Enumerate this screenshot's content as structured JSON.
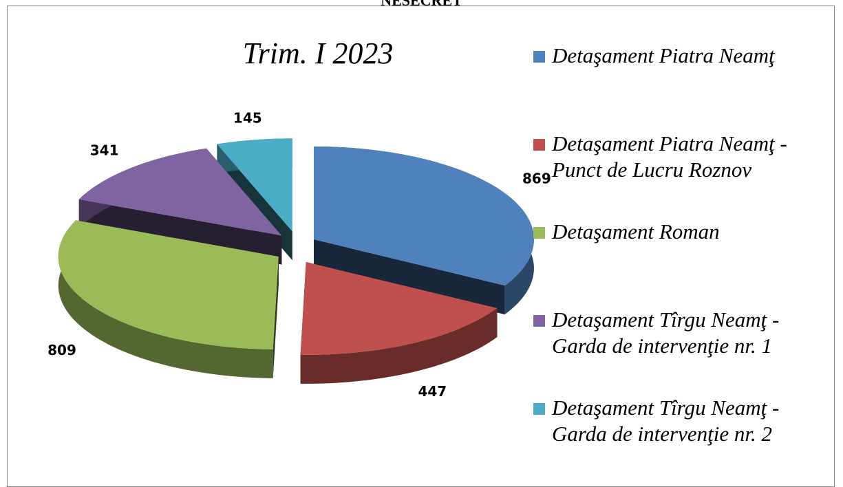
{
  "classification": "NESECRET",
  "chart_data": {
    "type": "pie",
    "title": "Trim. I 2023",
    "categories": [
      "Detaşament Piatra Neamţ",
      "Detaşament Piatra Neamţ - Punct de Lucru Roznov",
      "Detaşament Roman",
      "Detaşament Tîrgu Neamţ - Garda de intervenţie nr. 1",
      "Detaşament Tîrgu Neamţ - Garda de intervenţie nr. 2"
    ],
    "values": [
      869,
      447,
      809,
      341,
      145
    ],
    "colors": [
      "#4f81bd",
      "#c0504d",
      "#9bbb59",
      "#8064a2",
      "#4bacc6"
    ],
    "legend": "right"
  }
}
